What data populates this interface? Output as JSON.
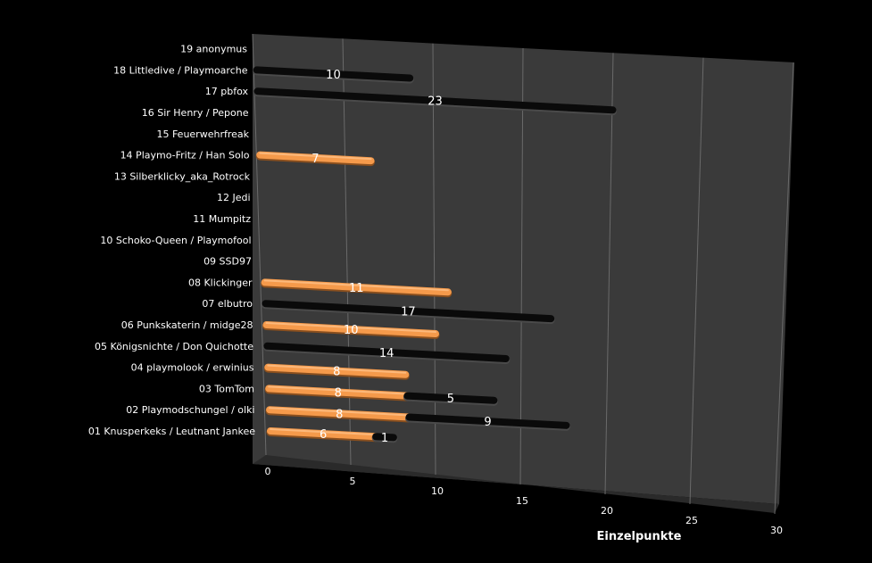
{
  "chart_data": {
    "type": "bar",
    "orientation": "horizontal",
    "stacked": true,
    "three_d": true,
    "categories": [
      "01 Knusperkeks / Leutnant Jankee",
      "02 Playmodschungel / olki",
      "03 TomTom",
      "04 playmolook / erwinius",
      "05 Königsnichte / Don Quichotte",
      "06 Punkskaterin / midge28",
      "07 elbutro",
      "08 Klickinger",
      "09 SSD97",
      "10 Schoko-Queen / Playmofool",
      "11 Mumpitz",
      "12 Jedi",
      "13 Silberklicky_aka_Rotrock",
      "14 Playmo-Fritz / Han Solo",
      "15 Feuerwehrfreak",
      "16 Sir Henry / Pepone",
      "17 pbfox",
      "18 Littledive / Playmoarche",
      "19 anonymus"
    ],
    "series": [
      {
        "color": "#F59A4B",
        "values": [
          6,
          8,
          8,
          8,
          0,
          10,
          0,
          11,
          0,
          0,
          0,
          0,
          0,
          7,
          0,
          0,
          0,
          0,
          0
        ],
        "labels": [
          "6",
          "8",
          "8",
          "8",
          "",
          "10",
          "",
          "11",
          "",
          "",
          "",
          "",
          "",
          "7",
          "",
          "",
          "",
          "",
          ""
        ]
      },
      {
        "color": "#0A0A0A",
        "values": [
          1,
          9,
          5,
          0,
          14,
          0,
          17,
          0,
          0,
          0,
          0,
          0,
          0,
          0,
          0,
          0,
          23,
          10,
          0
        ],
        "labels": [
          "1",
          "9",
          "5",
          "",
          "14",
          "",
          "17",
          "",
          "",
          "",
          "",
          "",
          "",
          "",
          "",
          "",
          "23",
          "10",
          ""
        ]
      }
    ],
    "note_positions": "series 2 bars for 05 and 07 start after series 1 of rows 04 and 06 visually (stacked on row of 04/06)",
    "xlim": [
      0,
      30
    ],
    "x_ticks": [
      "0",
      "5",
      "10",
      "15",
      "20",
      "25",
      "30"
    ],
    "xlabel": "Einzelpunkte",
    "ylabel": "",
    "title": "",
    "grid": true,
    "legend": "none",
    "colors": {
      "background": "#000000",
      "wall": "#3A3A3A",
      "floor": "#2A2A2A",
      "gridline": "#6A6A6A",
      "text": "#FFFFFF"
    }
  }
}
